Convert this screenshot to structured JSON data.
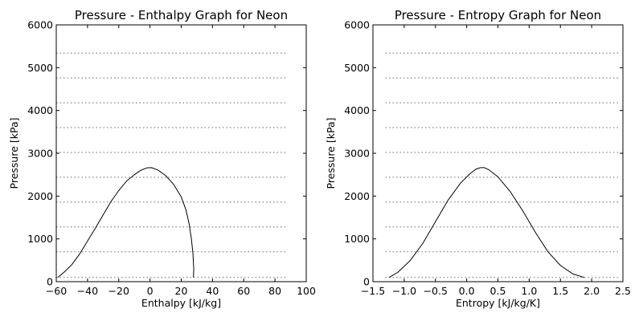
{
  "chart_data": [
    {
      "type": "line",
      "title": "Pressure - Enthalpy Graph for Neon",
      "xlabel": "Enthalpy [kJ/kg]",
      "ylabel": "Pressure [kPa]",
      "xlim": [
        -60,
        100
      ],
      "ylim": [
        0,
        6000
      ],
      "xticks": [
        -60,
        -40,
        -20,
        0,
        20,
        40,
        60,
        80,
        100
      ],
      "yticks": [
        0,
        1000,
        2000,
        3000,
        4000,
        5000,
        6000
      ],
      "tick_labels_x": [
        "−60",
        "−40",
        "−20",
        "0",
        "20",
        "40",
        "60",
        "80",
        "100"
      ],
      "tick_labels_y": [
        "0",
        "1000",
        "2000",
        "3000",
        "4000",
        "5000",
        "6000"
      ],
      "grid": false,
      "isobars": {
        "style": "dotted",
        "x_range": [
          -60,
          88
        ],
        "pressures": [
          100,
          700,
          1280,
          1860,
          2440,
          3020,
          3600,
          4180,
          4760,
          5340
        ]
      },
      "series": [
        {
          "points": [
            [
              -59,
              100
            ],
            [
              -55,
              220
            ],
            [
              -50,
              400
            ],
            [
              -45,
              650
            ],
            [
              -40,
              950
            ],
            [
              -35,
              1250
            ],
            [
              -30,
              1560
            ],
            [
              -25,
              1870
            ],
            [
              -20,
              2130
            ],
            [
              -15,
              2350
            ],
            [
              -10,
              2500
            ],
            [
              -6,
              2600
            ],
            [
              -2,
              2660
            ],
            [
              1,
              2665
            ],
            [
              5,
              2610
            ],
            [
              10,
              2480
            ],
            [
              15,
              2280
            ],
            [
              20,
              1980
            ],
            [
              23,
              1680
            ],
            [
              25,
              1360
            ],
            [
              26.5,
              1000
            ],
            [
              27.5,
              650
            ],
            [
              28,
              300
            ],
            [
              27.8,
              100
            ]
          ]
        }
      ]
    },
    {
      "type": "line",
      "title": "Pressure - Entropy Graph for Neon",
      "xlabel": "Entropy [kJ/kg/K]",
      "ylabel": "Pressure [kPa]",
      "xlim": [
        -1.5,
        2.5
      ],
      "ylim": [
        0,
        6000
      ],
      "xticks": [
        -1.5,
        -1.0,
        -0.5,
        0.0,
        0.5,
        1.0,
        1.5,
        2.0,
        2.5
      ],
      "yticks": [
        0,
        1000,
        2000,
        3000,
        4000,
        5000,
        6000
      ],
      "tick_labels_x": [
        "−1.5",
        "−1.0",
        "−0.5",
        "0.0",
        "0.5",
        "1.0",
        "1.5",
        "2.0",
        "2.5"
      ],
      "tick_labels_y": [
        "0",
        "1000",
        "2000",
        "3000",
        "4000",
        "5000",
        "6000"
      ],
      "grid": false,
      "isobars": {
        "style": "dotted",
        "x_range": [
          -1.3,
          2.45
        ],
        "pressures": [
          100,
          700,
          1280,
          1860,
          2440,
          3020,
          3600,
          4180,
          4760,
          5340
        ]
      },
      "series": [
        {
          "points": [
            [
              -1.24,
              100
            ],
            [
              -1.1,
              220
            ],
            [
              -0.9,
              500
            ],
            [
              -0.7,
              900
            ],
            [
              -0.5,
              1400
            ],
            [
              -0.3,
              1900
            ],
            [
              -0.1,
              2300
            ],
            [
              0.05,
              2520
            ],
            [
              0.15,
              2630
            ],
            [
              0.22,
              2665
            ],
            [
              0.28,
              2665
            ],
            [
              0.35,
              2620
            ],
            [
              0.5,
              2450
            ],
            [
              0.7,
              2100
            ],
            [
              0.9,
              1650
            ],
            [
              1.1,
              1150
            ],
            [
              1.3,
              700
            ],
            [
              1.5,
              380
            ],
            [
              1.7,
              180
            ],
            [
              1.88,
              100
            ]
          ]
        }
      ]
    }
  ]
}
